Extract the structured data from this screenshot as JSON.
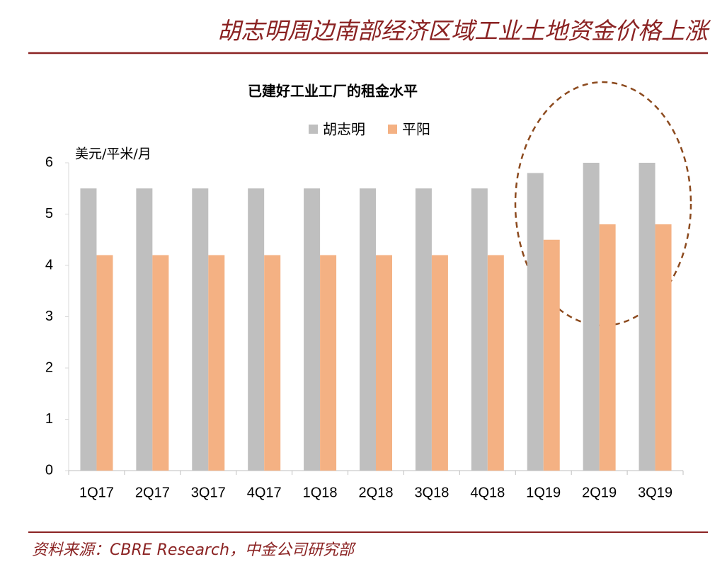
{
  "header": {
    "title": "胡志明周边南部经济区域工业土地资金价格上涨"
  },
  "footer": {
    "source": "资料来源：CBRE Research，中金公司研究部"
  },
  "chart_data": {
    "type": "bar",
    "title": "已建好工业工厂的租金水平",
    "y_label": "美元/平米/月",
    "categories": [
      "1Q17",
      "2Q17",
      "3Q17",
      "4Q17",
      "1Q18",
      "2Q18",
      "3Q18",
      "4Q18",
      "1Q19",
      "2Q19",
      "3Q19"
    ],
    "series": [
      {
        "name": "胡志明",
        "color": "#bfbfbf",
        "values": [
          5.5,
          5.5,
          5.5,
          5.5,
          5.5,
          5.5,
          5.5,
          5.5,
          5.8,
          6,
          6
        ]
      },
      {
        "name": "平阳",
        "color": "#f4b183",
        "values": [
          4.2,
          4.2,
          4.2,
          4.2,
          4.2,
          4.2,
          4.2,
          4.2,
          4.5,
          4.8,
          4.8
        ]
      }
    ],
    "ylim": [
      0,
      6
    ],
    "yticks": [
      0,
      1,
      2,
      3,
      4,
      5,
      6
    ],
    "grid": false,
    "legend": "top"
  }
}
